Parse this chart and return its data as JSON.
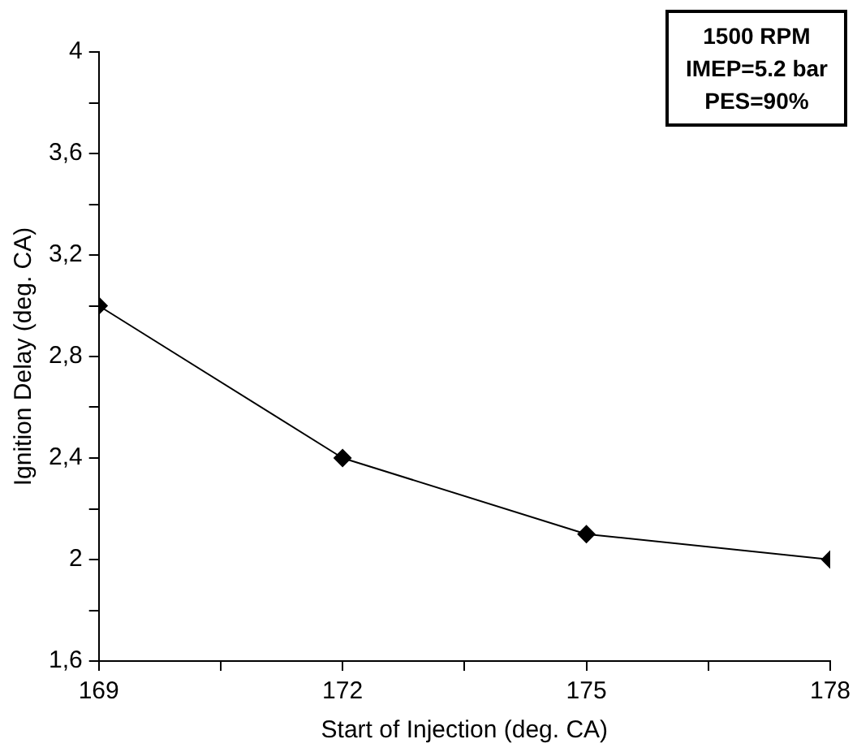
{
  "chart_data": {
    "type": "line",
    "xlabel": "Start of Injection (deg. CA)",
    "ylabel": "Ignition Delay (deg. CA)",
    "x": [
      169,
      172,
      175,
      178
    ],
    "series": [
      {
        "color": "#000000",
        "values": [
          3.0,
          2.4,
          2.1,
          2.0
        ]
      }
    ],
    "xlim": [
      169,
      178
    ],
    "xticks": [
      169,
      {
        "value": 170.5,
        "label": null
      },
      172,
      {
        "value": 173.5,
        "label": null
      },
      175,
      {
        "value": 176.5,
        "label": null
      },
      178
    ],
    "ylim": [
      1.6,
      4
    ],
    "yticks": [
      {
        "value": 1.6,
        "label": "1,6"
      },
      {
        "value": 1.8,
        "label": null
      },
      {
        "value": 2,
        "label": "2"
      },
      {
        "value": 2.2,
        "label": null
      },
      {
        "value": 2.4,
        "label": "2,4"
      },
      {
        "value": 2.6,
        "label": null
      },
      {
        "value": 2.8,
        "label": "2,8"
      },
      {
        "value": 3,
        "label": null
      },
      {
        "value": 3.2,
        "label": "3,2"
      },
      {
        "value": 3.4,
        "label": null
      },
      {
        "value": 3.6,
        "label": "3,6"
      },
      {
        "value": 3.8,
        "label": null
      },
      {
        "value": 4,
        "label": "4"
      }
    ],
    "marker": "diamond",
    "line_style": "solid",
    "annotations": [
      "1500 RPM",
      "IMEP=5.2 bar",
      "PES=90%"
    ]
  }
}
